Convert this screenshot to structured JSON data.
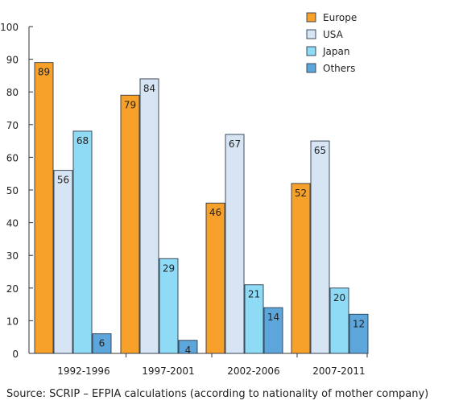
{
  "chart_data": {
    "type": "bar",
    "categories": [
      "1992-1996",
      "1997-2001",
      "2002-2006",
      "2007-2011"
    ],
    "series": [
      {
        "name": "Europe",
        "color": "#f7a12a",
        "values": [
          89,
          79,
          46,
          52
        ]
      },
      {
        "name": "USA",
        "color": "#d6e4f4",
        "values": [
          56,
          84,
          67,
          65
        ]
      },
      {
        "name": "Japan",
        "color": "#8fdaf5",
        "values": [
          68,
          29,
          21,
          20
        ]
      },
      {
        "name": "Others",
        "color": "#5da6dc",
        "values": [
          6,
          4,
          14,
          12
        ]
      }
    ],
    "ylim": [
      0,
      100
    ],
    "yticks": [
      0,
      10,
      20,
      30,
      40,
      50,
      60,
      70,
      80,
      90,
      100
    ],
    "legend_position": "top-right",
    "grid": false
  },
  "source": "Source: SCRIP – EFPIA calculations (according to nationality of mother company)"
}
